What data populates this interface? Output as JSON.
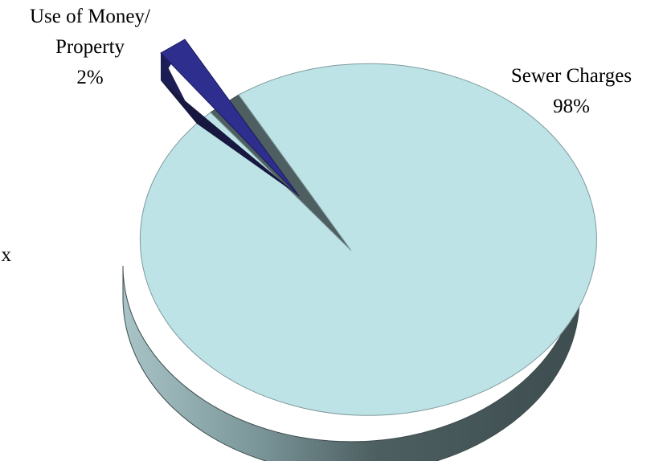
{
  "chart_data": {
    "type": "pie",
    "three_d": true,
    "title": "",
    "slices": [
      {
        "label": "Sewer Charges",
        "value": 98,
        "value_label": "98%",
        "color": "#BDE3E7",
        "exploded": false
      },
      {
        "label": "Use of Money/ Property",
        "label_lines": [
          "Use of Money/",
          "Property"
        ],
        "value": 2,
        "value_label": "2%",
        "color": "#2E2E8F",
        "exploded": true
      }
    ],
    "partial_label_fragment": "x",
    "legend": "none"
  }
}
